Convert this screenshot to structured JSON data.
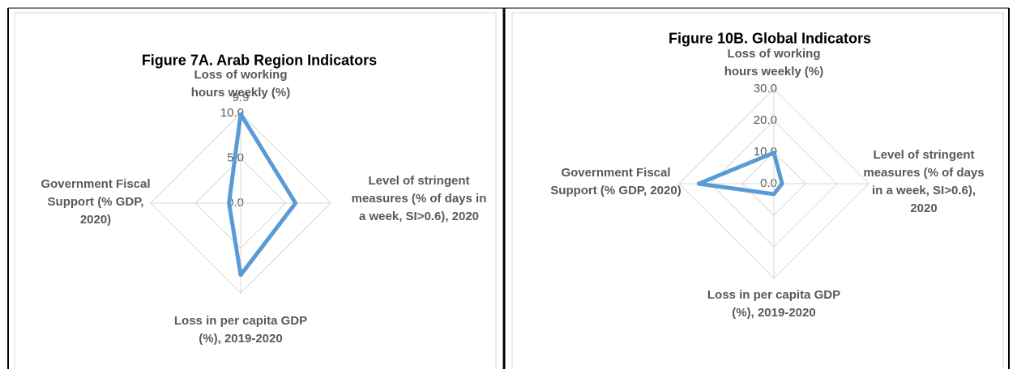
{
  "chart_data": [
    {
      "type": "radar",
      "title": "Figure 7A. Arab Region Indicators",
      "categories": [
        "Loss of working hours weekly (%)",
        "Level of stringent measures (% of days in a week, SI>0.6), 2020",
        "Loss in per capita GDP (%), 2019-2020",
        "Government Fiscal Support (% GDP, 2020)"
      ],
      "values": [
        9.9,
        6.1,
        8.0,
        1.3
      ],
      "value_labels": [
        "9.9",
        null,
        null,
        null
      ],
      "color": "#5b9bd5",
      "ylim": [
        0,
        10
      ],
      "yticks": [
        {
          "value": 0,
          "label": "0.0"
        },
        {
          "value": 5,
          "label": "5.0"
        },
        {
          "value": 10,
          "label": "10.0"
        }
      ],
      "grid": true
    },
    {
      "type": "radar",
      "title": "Figure 10B. Global Indicators",
      "categories": [
        "Loss of working hours weekly (%)",
        "Level of stringent measures (% of days in a week, SI>0.6), 2020",
        "Loss in per capita GDP (%), 2019-2020",
        "Government Fiscal Support (% GDP, 2020)"
      ],
      "values": [
        9.8,
        2.6,
        3.3,
        23.8
      ],
      "color": "#5b9bd5",
      "ylim": [
        0,
        30
      ],
      "yticks": [
        {
          "value": 0,
          "label": "0.0"
        },
        {
          "value": 10,
          "label": "10.0"
        },
        {
          "value": 20,
          "label": "20.0"
        },
        {
          "value": 30,
          "label": "30.0"
        }
      ],
      "grid": true
    }
  ]
}
